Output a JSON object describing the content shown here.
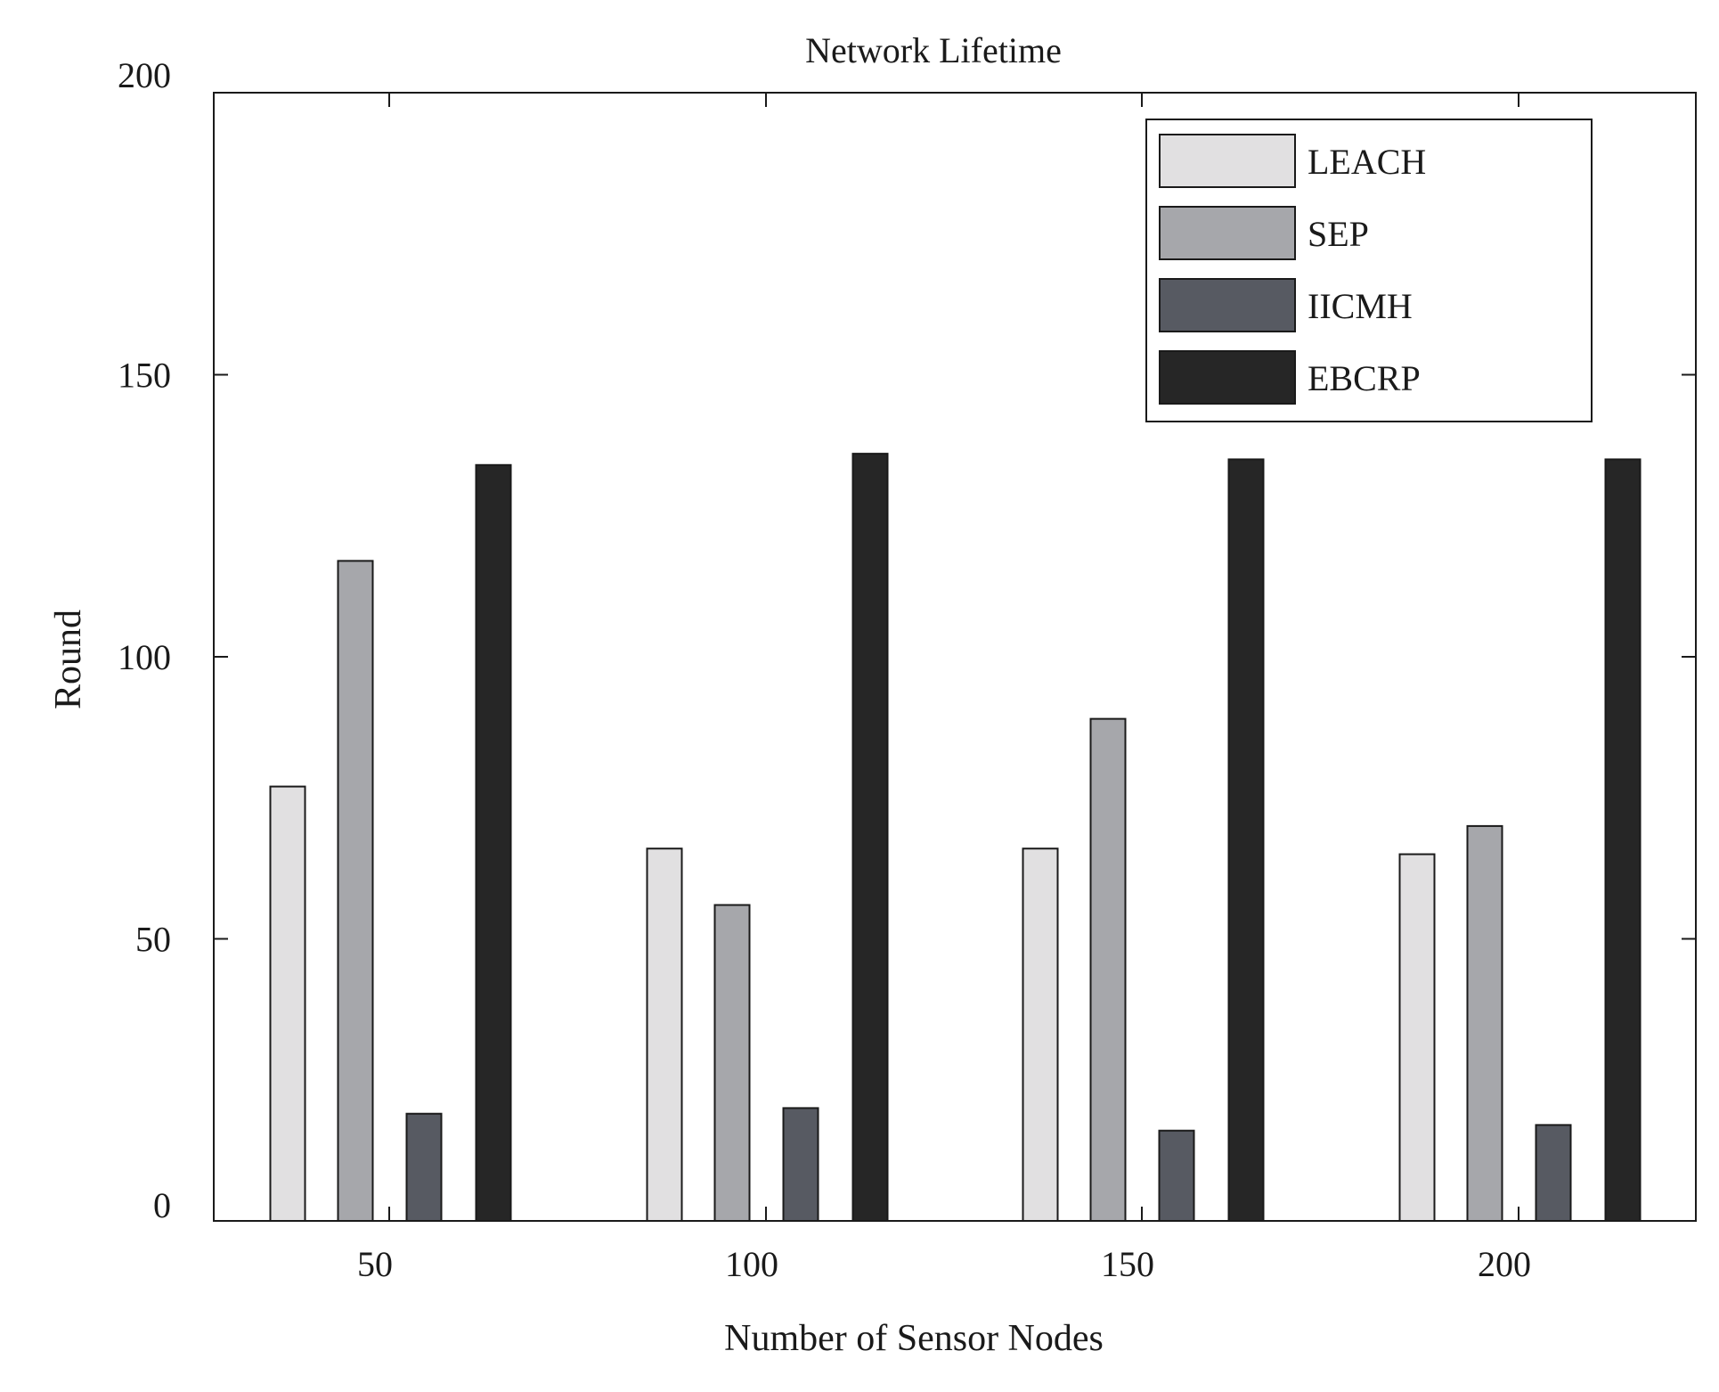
{
  "chart_data": {
    "type": "bar",
    "title": "Network Lifetime",
    "xlabel": "Number of Sensor Nodes",
    "ylabel": "Round",
    "categories": [
      "50",
      "100",
      "150",
      "200"
    ],
    "ylim": [
      0,
      200
    ],
    "yticks": [
      "0",
      "50",
      "100",
      "150",
      "200"
    ],
    "grid": false,
    "legend_position": "top-right",
    "series": [
      {
        "name": "LEACH",
        "color": "#e1e0e1",
        "values": [
          77,
          66,
          66,
          65
        ]
      },
      {
        "name": "SEP",
        "color": "#a6a7ab",
        "values": [
          117,
          56,
          89,
          70
        ]
      },
      {
        "name": "IICMH",
        "color": "#575a62",
        "values": [
          19,
          20,
          16,
          17
        ]
      },
      {
        "name": "EBCRP",
        "color": "#262626",
        "values": [
          134,
          136,
          135,
          135
        ]
      }
    ]
  }
}
